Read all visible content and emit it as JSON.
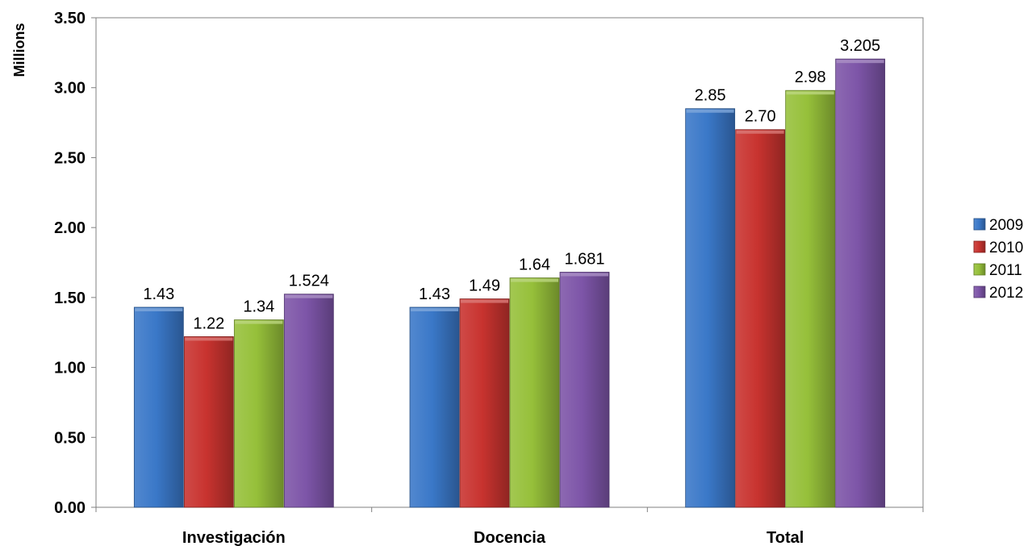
{
  "chart_data": {
    "type": "bar",
    "ylabel": "Millions",
    "ylim": [
      0,
      3.5
    ],
    "yticks": [
      "0.00",
      "0.50",
      "1.00",
      "1.50",
      "2.00",
      "2.50",
      "3.00",
      "3.50"
    ],
    "categories": [
      "Investigación",
      "Docencia",
      "Total"
    ],
    "series": [
      {
        "name": "2009",
        "color": "#3a78c8",
        "values": [
          1.43,
          1.43,
          2.85
        ],
        "labels": [
          "1.43",
          "1.43",
          "2.85"
        ]
      },
      {
        "name": "2010",
        "color": "#c8332f",
        "values": [
          1.22,
          1.49,
          2.7
        ],
        "labels": [
          "1.22",
          "1.49",
          "2.70"
        ]
      },
      {
        "name": "2011",
        "color": "#96c03a",
        "values": [
          1.34,
          1.64,
          2.98
        ],
        "labels": [
          "1.34",
          "1.64",
          "2.98"
        ]
      },
      {
        "name": "2012",
        "color": "#7d55a8",
        "values": [
          1.524,
          1.681,
          3.205
        ],
        "labels": [
          "1.524",
          "1.681",
          "3.205"
        ]
      }
    ],
    "legend_position": "right",
    "grid": false
  }
}
